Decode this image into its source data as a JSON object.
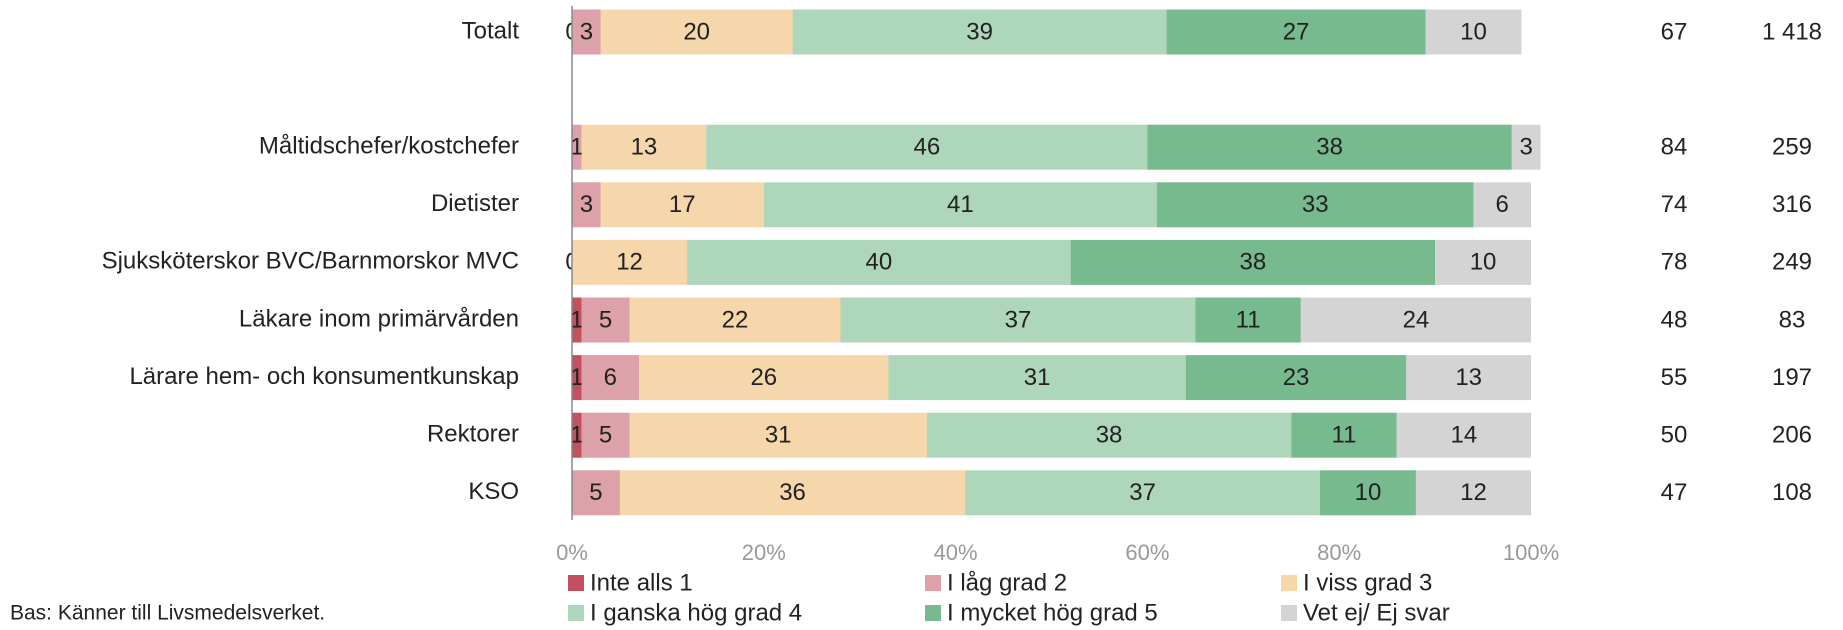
{
  "chart_data": {
    "type": "stacked-bar-horizontal",
    "categories": [
      "Totalt",
      null,
      "Måltidschefer/kostchefer",
      "Dietister",
      "Sjuksköterskor BVC/Barnmorskor MVC",
      "Läkare inom primärvården",
      "Lärare hem- och konsumentkunskap",
      "Rektorer",
      "KSO"
    ],
    "series": [
      {
        "name": "Inte alls 1",
        "color": "#c4505e",
        "values": [
          0,
          null,
          null,
          null,
          0,
          1,
          1,
          1,
          null
        ]
      },
      {
        "name": "I låg grad 2",
        "color": "#dca1a9",
        "values": [
          3,
          null,
          1,
          3,
          null,
          5,
          6,
          5,
          5
        ]
      },
      {
        "name": "I viss grad 3",
        "color": "#f6d6ab",
        "values": [
          20,
          null,
          13,
          17,
          12,
          22,
          26,
          31,
          36
        ]
      },
      {
        "name": "I ganska hög grad 4",
        "color": "#add6bb",
        "values": [
          39,
          null,
          46,
          41,
          40,
          37,
          31,
          38,
          37
        ]
      },
      {
        "name": "I mycket hög grad 5",
        "color": "#76ba8e",
        "values": [
          27,
          null,
          38,
          33,
          38,
          11,
          23,
          11,
          10
        ]
      },
      {
        "name": "Vet ej/ Ej svar",
        "color": "#d4d4d4",
        "values": [
          10,
          null,
          3,
          6,
          10,
          24,
          13,
          14,
          12
        ]
      }
    ],
    "column_1": [
      67,
      null,
      84,
      74,
      78,
      48,
      55,
      50,
      47
    ],
    "column_2": [
      {
        "value": 1418,
        "label": "1 418"
      },
      null,
      259,
      316,
      249,
      83,
      197,
      206,
      108
    ],
    "xlim": [
      0,
      100
    ],
    "xticks": [
      {
        "value": 0,
        "label": "0%"
      },
      {
        "value": 20,
        "label": "20%"
      },
      {
        "value": 40,
        "label": "40%"
      },
      {
        "value": 60,
        "label": "60%"
      },
      {
        "value": 80,
        "label": "80%"
      },
      {
        "value": 100,
        "label": "100%"
      }
    ],
    "footnote": "Bas: Känner till Livsmedelsverket."
  }
}
